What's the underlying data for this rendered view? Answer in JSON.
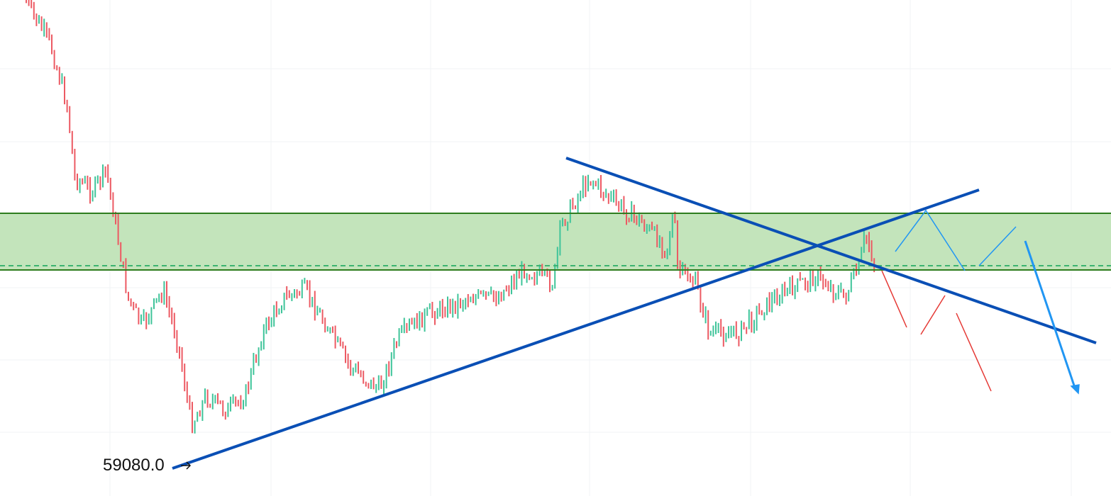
{
  "annotation": {
    "price_label": "59080.0"
  }
}
